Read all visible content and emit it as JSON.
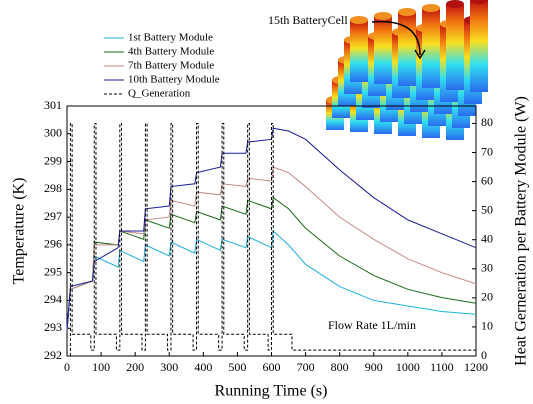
{
  "chart_data": {
    "type": "line",
    "x_label": "Running Time (s)",
    "y_label": "Temperature (K)",
    "y2_label": "Heat Gerneration per Battery Module (W)",
    "annotations": [
      "15th BatteryCell",
      "Flow Rate 1L/min"
    ],
    "x": [
      0,
      10,
      75,
      80,
      150,
      155,
      225,
      230,
      300,
      305,
      375,
      380,
      450,
      455,
      525,
      530,
      600,
      605,
      650,
      700,
      800,
      900,
      1000,
      1100,
      1200
    ],
    "series": [
      {
        "name": "1st Battery Module",
        "color": "#1ab0e0",
        "values": [
          292.9,
          294.4,
          294.7,
          295.6,
          295.2,
          295.8,
          295.4,
          296.0,
          295.6,
          296.1,
          295.7,
          296.2,
          295.8,
          296.2,
          295.9,
          296.3,
          295.9,
          296.5,
          296.0,
          295.3,
          294.5,
          294.0,
          293.8,
          293.6,
          293.5
        ]
      },
      {
        "name": "4th Battery Module",
        "color": "#1a6b1a",
        "values": [
          292.9,
          294.4,
          294.7,
          296.1,
          296.0,
          296.5,
          296.2,
          296.9,
          296.6,
          297.1,
          296.8,
          297.2,
          296.9,
          297.4,
          297.1,
          297.6,
          297.3,
          297.7,
          297.3,
          296.6,
          295.6,
          294.9,
          294.4,
          294.1,
          293.9
        ]
      },
      {
        "name": "7th Battery Module",
        "color": "#c48a86",
        "values": [
          292.9,
          294.4,
          294.7,
          296.0,
          296.0,
          296.5,
          296.4,
          296.9,
          297.0,
          297.6,
          297.4,
          297.9,
          297.8,
          298.2,
          298.1,
          298.4,
          298.3,
          298.8,
          298.6,
          298.1,
          297.0,
          296.2,
          295.5,
          295.0,
          294.6
        ]
      },
      {
        "name": "10th Battery Module",
        "color": "#1a1a9c",
        "values": [
          292.9,
          294.5,
          294.7,
          295.4,
          295.9,
          296.5,
          296.5,
          297.3,
          297.4,
          298.1,
          298.2,
          298.6,
          298.8,
          299.3,
          299.3,
          299.7,
          299.8,
          300.2,
          300.1,
          299.8,
          298.7,
          297.7,
          296.9,
          296.4,
          295.9
        ]
      },
      {
        "name": "Q_Generation",
        "color": "#000000",
        "axis": "y2",
        "dashed": true,
        "x": [
          10,
          10,
          15,
          15,
          70,
          70,
          80,
          80,
          85,
          85,
          145,
          145,
          155,
          155,
          160,
          160,
          220,
          220,
          230,
          230,
          235,
          235,
          295,
          295,
          305,
          305,
          310,
          310,
          370,
          370,
          380,
          380,
          385,
          385,
          445,
          445,
          455,
          455,
          460,
          460,
          520,
          520,
          530,
          530,
          535,
          535,
          590,
          590,
          600,
          600,
          605,
          605,
          660,
          660,
          1200
        ],
        "values": [
          0,
          80,
          80,
          7.5,
          7.5,
          2,
          2,
          80,
          80,
          7.5,
          7.5,
          2,
          2,
          80,
          80,
          7.5,
          7.5,
          2,
          2,
          80,
          80,
          7.5,
          7.5,
          2,
          2,
          80,
          80,
          7.5,
          7.5,
          2,
          2,
          80,
          80,
          7.5,
          7.5,
          2,
          2,
          80,
          80,
          7.5,
          7.5,
          2,
          2,
          80,
          80,
          7.5,
          7.5,
          2,
          2,
          80,
          80,
          7.5,
          7.5,
          2,
          2
        ]
      }
    ],
    "xlim": [
      0,
      1200
    ],
    "xticks": [
      0,
      100,
      200,
      300,
      400,
      500,
      600,
      700,
      800,
      900,
      1000,
      1100,
      1200
    ],
    "ylim": [
      292,
      301
    ],
    "yticks": [
      292,
      293,
      294,
      295,
      296,
      297,
      298,
      299,
      300,
      301
    ],
    "y2lim": [
      0,
      86
    ],
    "y2ticks": [
      0,
      10,
      20,
      30,
      40,
      50,
      60,
      70,
      80
    ],
    "legend": "upper-left"
  }
}
